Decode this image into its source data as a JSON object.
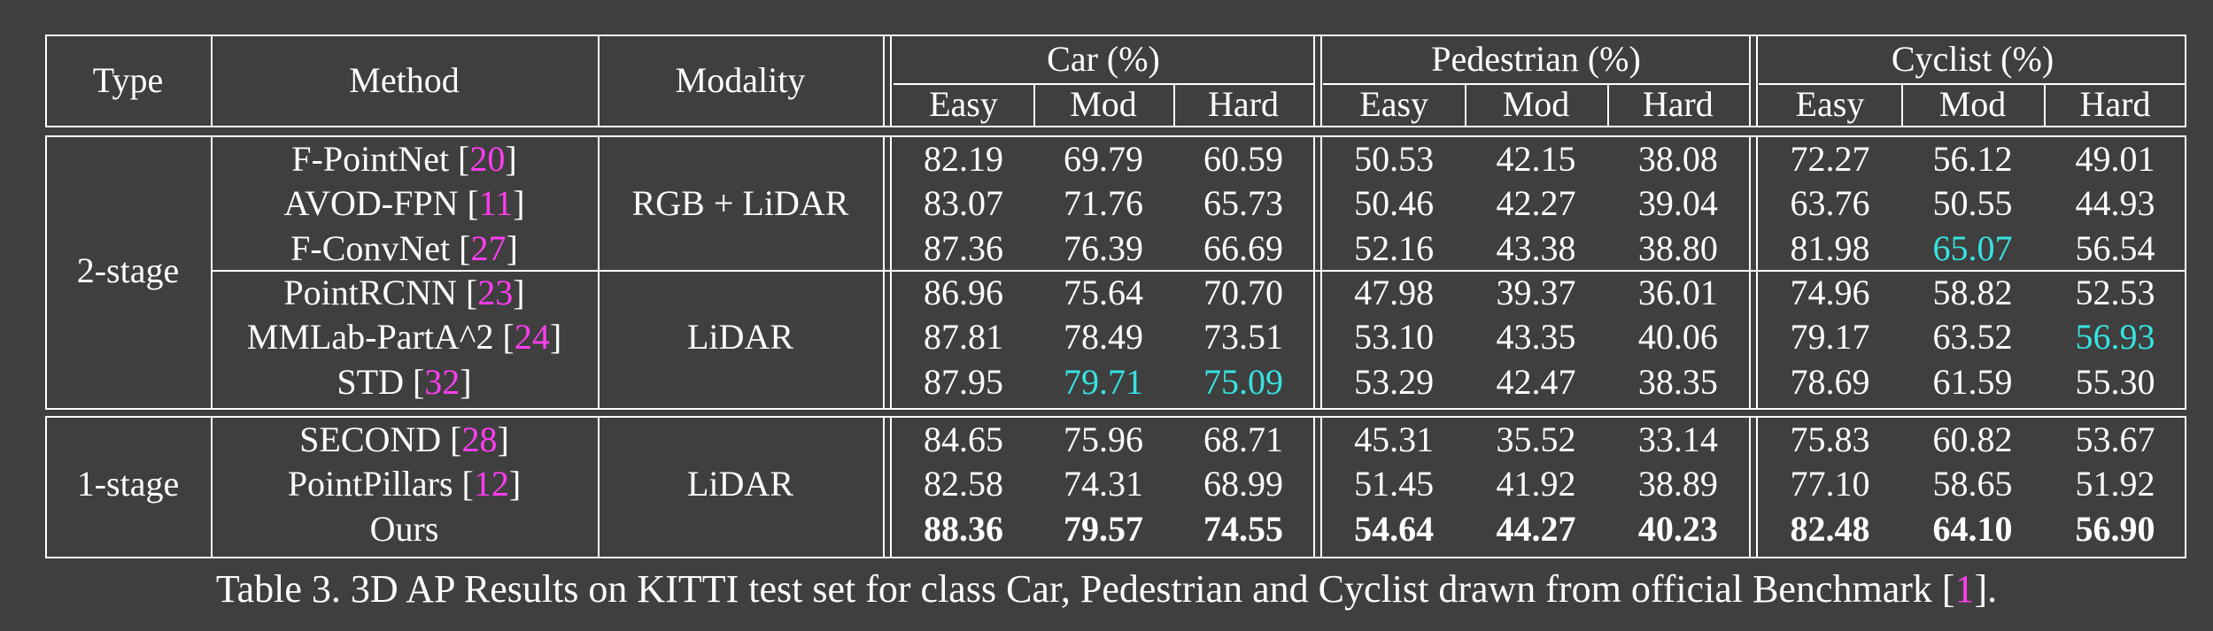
{
  "header": {
    "type": "Type",
    "method": "Method",
    "modality": "Modality",
    "classes": [
      "Car (%)",
      "Pedestrian (%)",
      "Cyclist (%)"
    ],
    "difficulties": [
      "Easy",
      "Mod",
      "Hard"
    ]
  },
  "groups": [
    {
      "type": "2-stage",
      "blocks": [
        {
          "modality": "RGB + LiDAR",
          "rows": [
            {
              "name": "F-PointNet [",
              "ref": "20",
              "close": "]",
              "values": [
                "82.19",
                "69.79",
                "60.59",
                "50.53",
                "42.15",
                "38.08",
                "72.27",
                "56.12",
                "49.01"
              ],
              "highlight": []
            },
            {
              "name": "AVOD-FPN [",
              "ref": "11",
              "close": "]",
              "values": [
                "83.07",
                "71.76",
                "65.73",
                "50.46",
                "42.27",
                "39.04",
                "63.76",
                "50.55",
                "44.93"
              ],
              "highlight": []
            },
            {
              "name": "F-ConvNet [",
              "ref": "27",
              "close": "]",
              "values": [
                "87.36",
                "76.39",
                "66.69",
                "52.16",
                "43.38",
                "38.80",
                "81.98",
                "65.07",
                "56.54"
              ],
              "highlight": [
                7
              ]
            }
          ]
        },
        {
          "modality": "LiDAR",
          "rows": [
            {
              "name": "PointRCNN [",
              "ref": "23",
              "close": "]",
              "values": [
                "86.96",
                "75.64",
                "70.70",
                "47.98",
                "39.37",
                "36.01",
                "74.96",
                "58.82",
                "52.53"
              ],
              "highlight": []
            },
            {
              "name": "MMLab-PartA^2 [",
              "ref": "24",
              "close": "]",
              "values": [
                "87.81",
                "78.49",
                "73.51",
                "53.10",
                "43.35",
                "40.06",
                "79.17",
                "63.52",
                "56.93"
              ],
              "highlight": [
                8
              ]
            },
            {
              "name": "STD [",
              "ref": "32",
              "close": "]",
              "values": [
                "87.95",
                "79.71",
                "75.09",
                "53.29",
                "42.47",
                "38.35",
                "78.69",
                "61.59",
                "55.30"
              ],
              "highlight": [
                1,
                2
              ]
            }
          ]
        }
      ]
    },
    {
      "type": "1-stage",
      "blocks": [
        {
          "modality": "LiDAR",
          "rows": [
            {
              "name": "SECOND [",
              "ref": "28",
              "close": "]",
              "values": [
                "84.65",
                "75.96",
                "68.71",
                "45.31",
                "35.52",
                "33.14",
                "75.83",
                "60.82",
                "53.67"
              ],
              "highlight": []
            },
            {
              "name": "PointPillars [",
              "ref": "12",
              "close": "]",
              "values": [
                "82.58",
                "74.31",
                "68.99",
                "51.45",
                "41.92",
                "38.89",
                "77.10",
                "58.65",
                "51.92"
              ],
              "highlight": []
            },
            {
              "name": "Ours",
              "ref": "",
              "close": "",
              "values": [
                "88.36",
                "79.57",
                "74.55",
                "54.64",
                "44.27",
                "40.23",
                "82.48",
                "64.10",
                "56.90"
              ],
              "highlight": [],
              "bold": true
            }
          ]
        }
      ]
    }
  ],
  "caption": {
    "text": "Table 3. 3D AP Results on KITTI test set for class Car, Pedestrian and Cyclist drawn from official Benchmark [",
    "ref": "1",
    "close": "]."
  },
  "colors": {
    "background": "#3f3f3f",
    "text": "#ffffff",
    "highlight": "#37e3e3",
    "reference": "#ff3df0"
  }
}
